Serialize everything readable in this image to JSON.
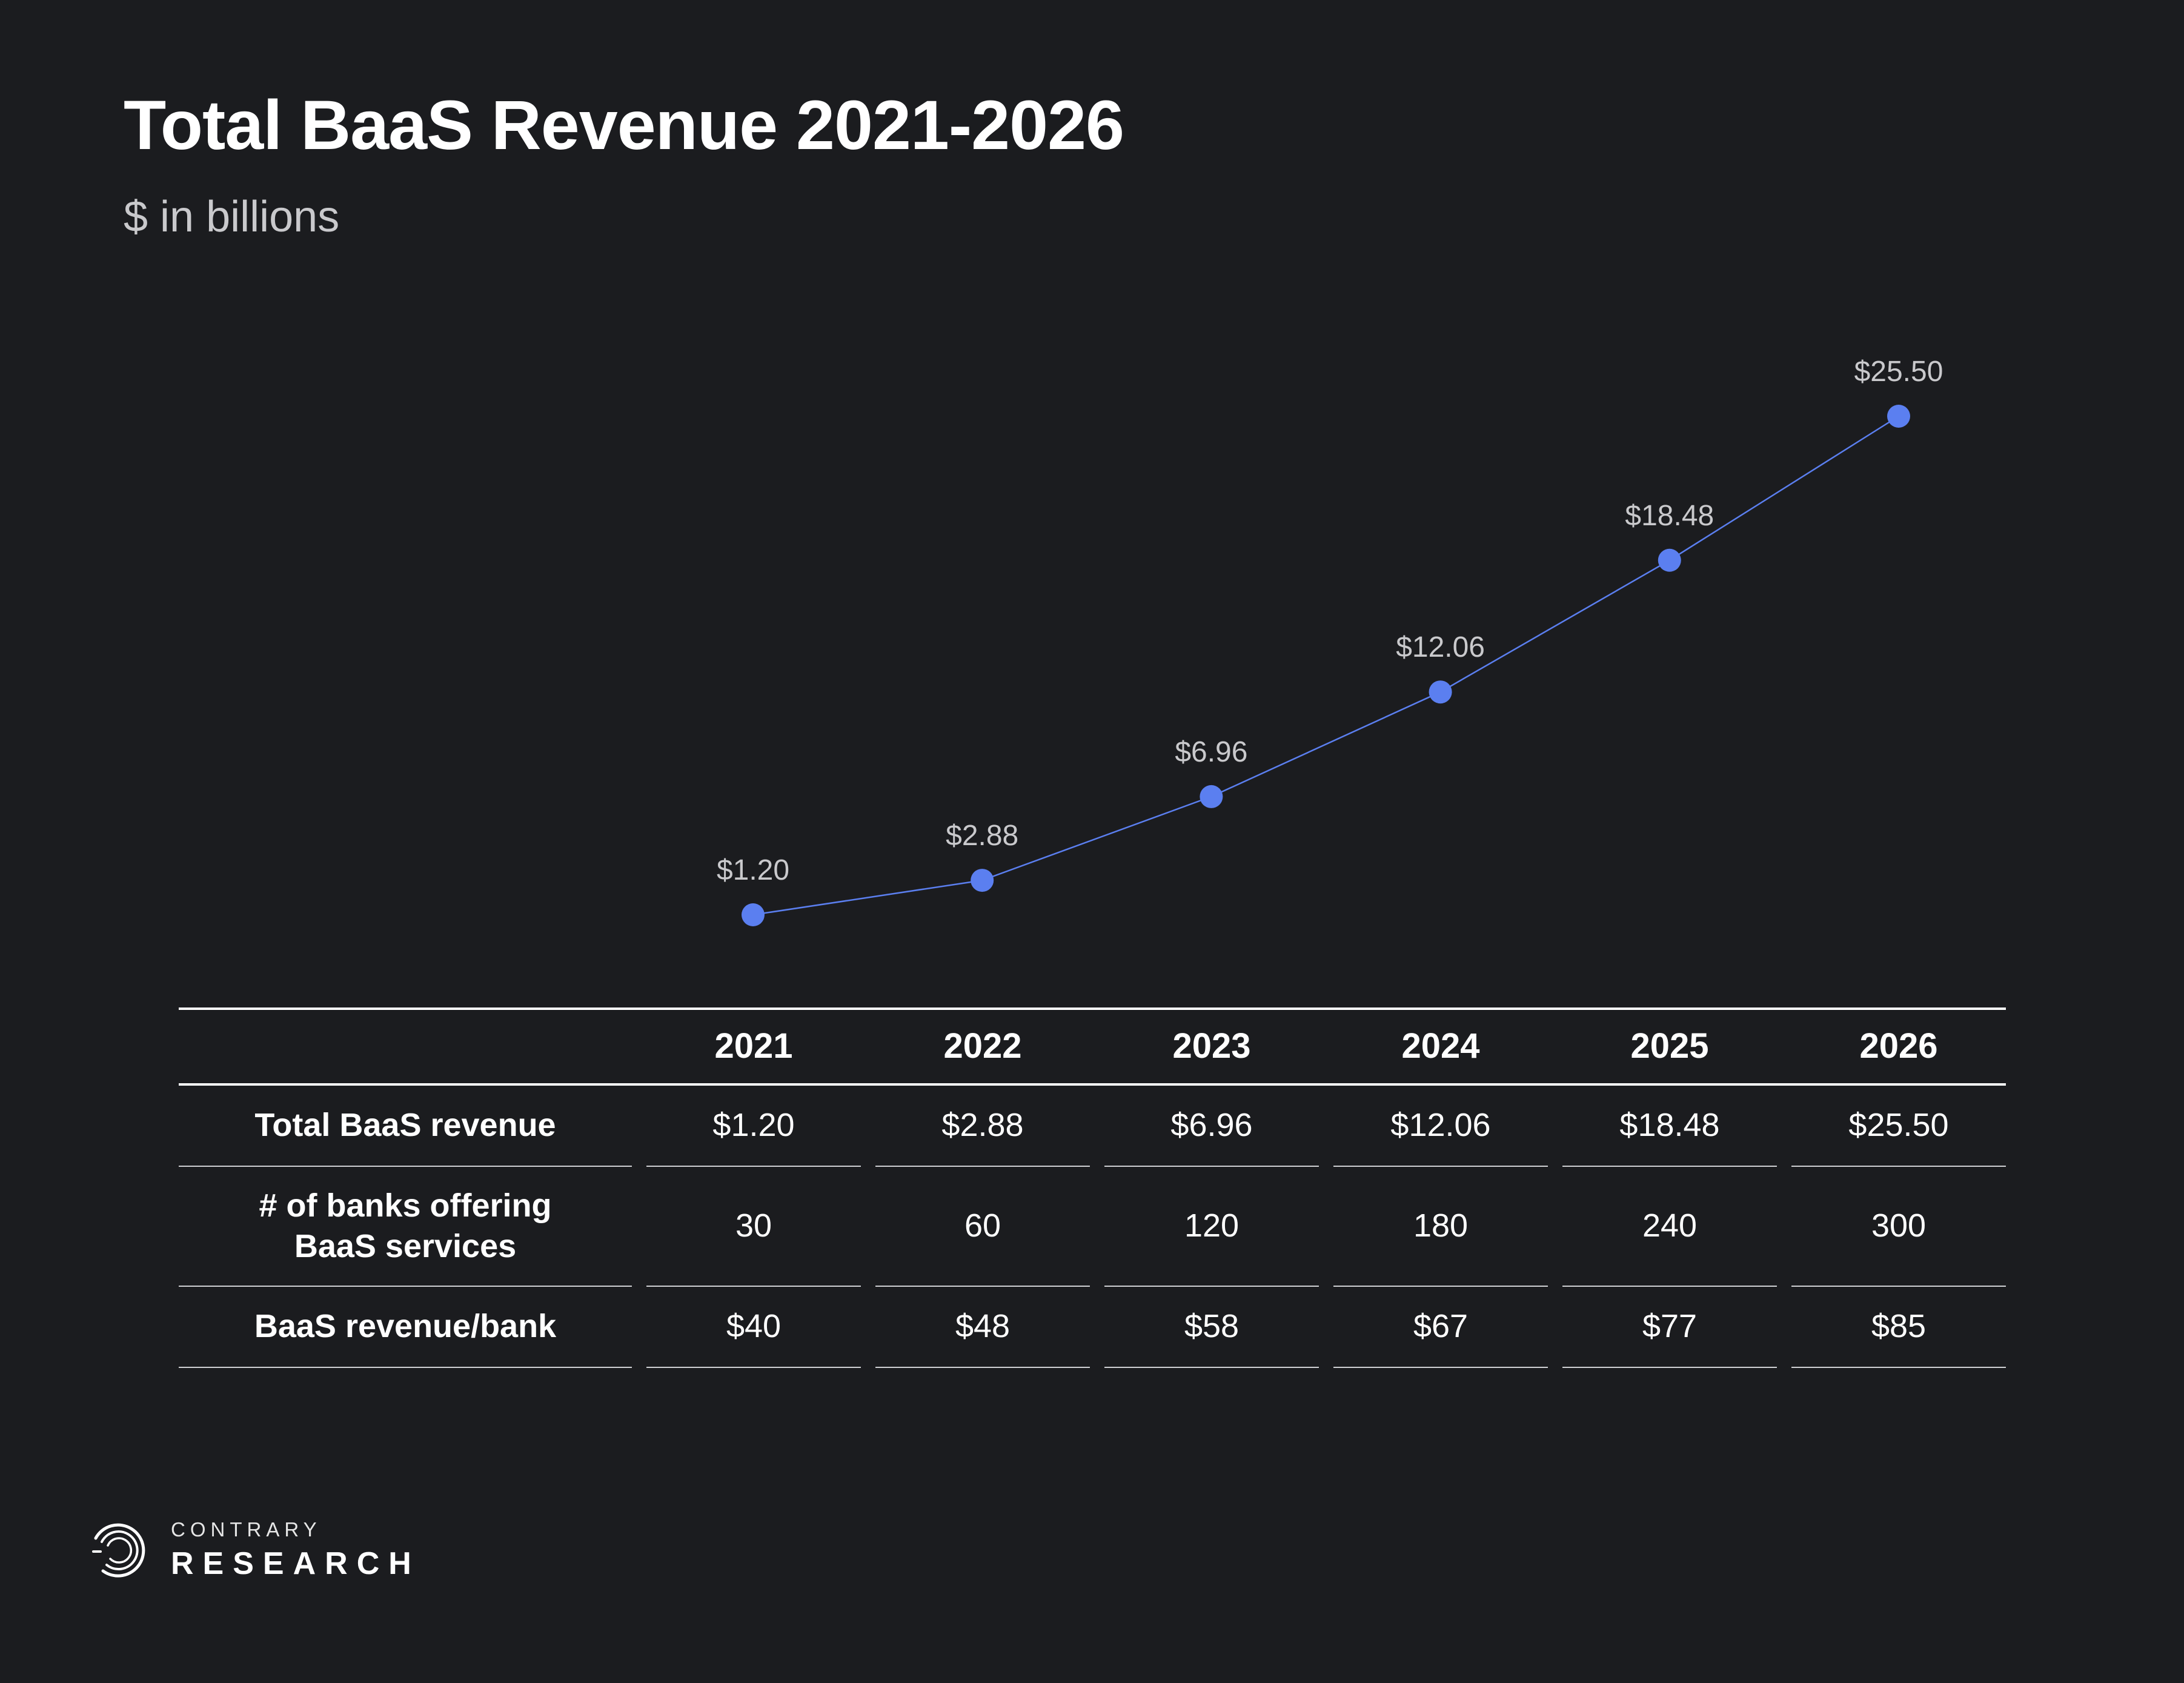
{
  "header": {
    "title": "Total BaaS Revenue 2021-2026",
    "subtitle": "$ in billions"
  },
  "chart_data": {
    "type": "line",
    "title": "Total BaaS Revenue 2021-2026",
    "subtitle": "$ in billions",
    "x": [
      "2021",
      "2022",
      "2023",
      "2024",
      "2025",
      "2026"
    ],
    "series": [
      {
        "values": [
          1.2,
          2.88,
          6.96,
          12.06,
          18.48,
          25.5
        ],
        "labels": [
          "$1.20",
          "$2.88",
          "$6.96",
          "$12.06",
          "$18.48",
          "$25.50"
        ],
        "color": "#5b7ff0"
      }
    ],
    "ylim": [
      0,
      25.5
    ],
    "grid": false,
    "legend": "none"
  },
  "table": {
    "years": [
      "2021",
      "2022",
      "2023",
      "2024",
      "2025",
      "2026"
    ],
    "rows": [
      {
        "label": "Total BaaS revenue",
        "values": [
          "$1.20",
          "$2.88",
          "$6.96",
          "$12.06",
          "$18.48",
          "$25.50"
        ]
      },
      {
        "label_line1": "# of banks offering",
        "label_line2": "BaaS services",
        "values": [
          "30",
          "60",
          "120",
          "180",
          "240",
          "300"
        ]
      },
      {
        "label": "BaaS revenue/bank",
        "values": [
          "$40",
          "$48",
          "$58",
          "$67",
          "$77",
          "$85"
        ]
      }
    ]
  },
  "brand": {
    "icon": "contrary-logo-icon",
    "top": "CONTRARY",
    "bottom": "RESEARCH"
  }
}
